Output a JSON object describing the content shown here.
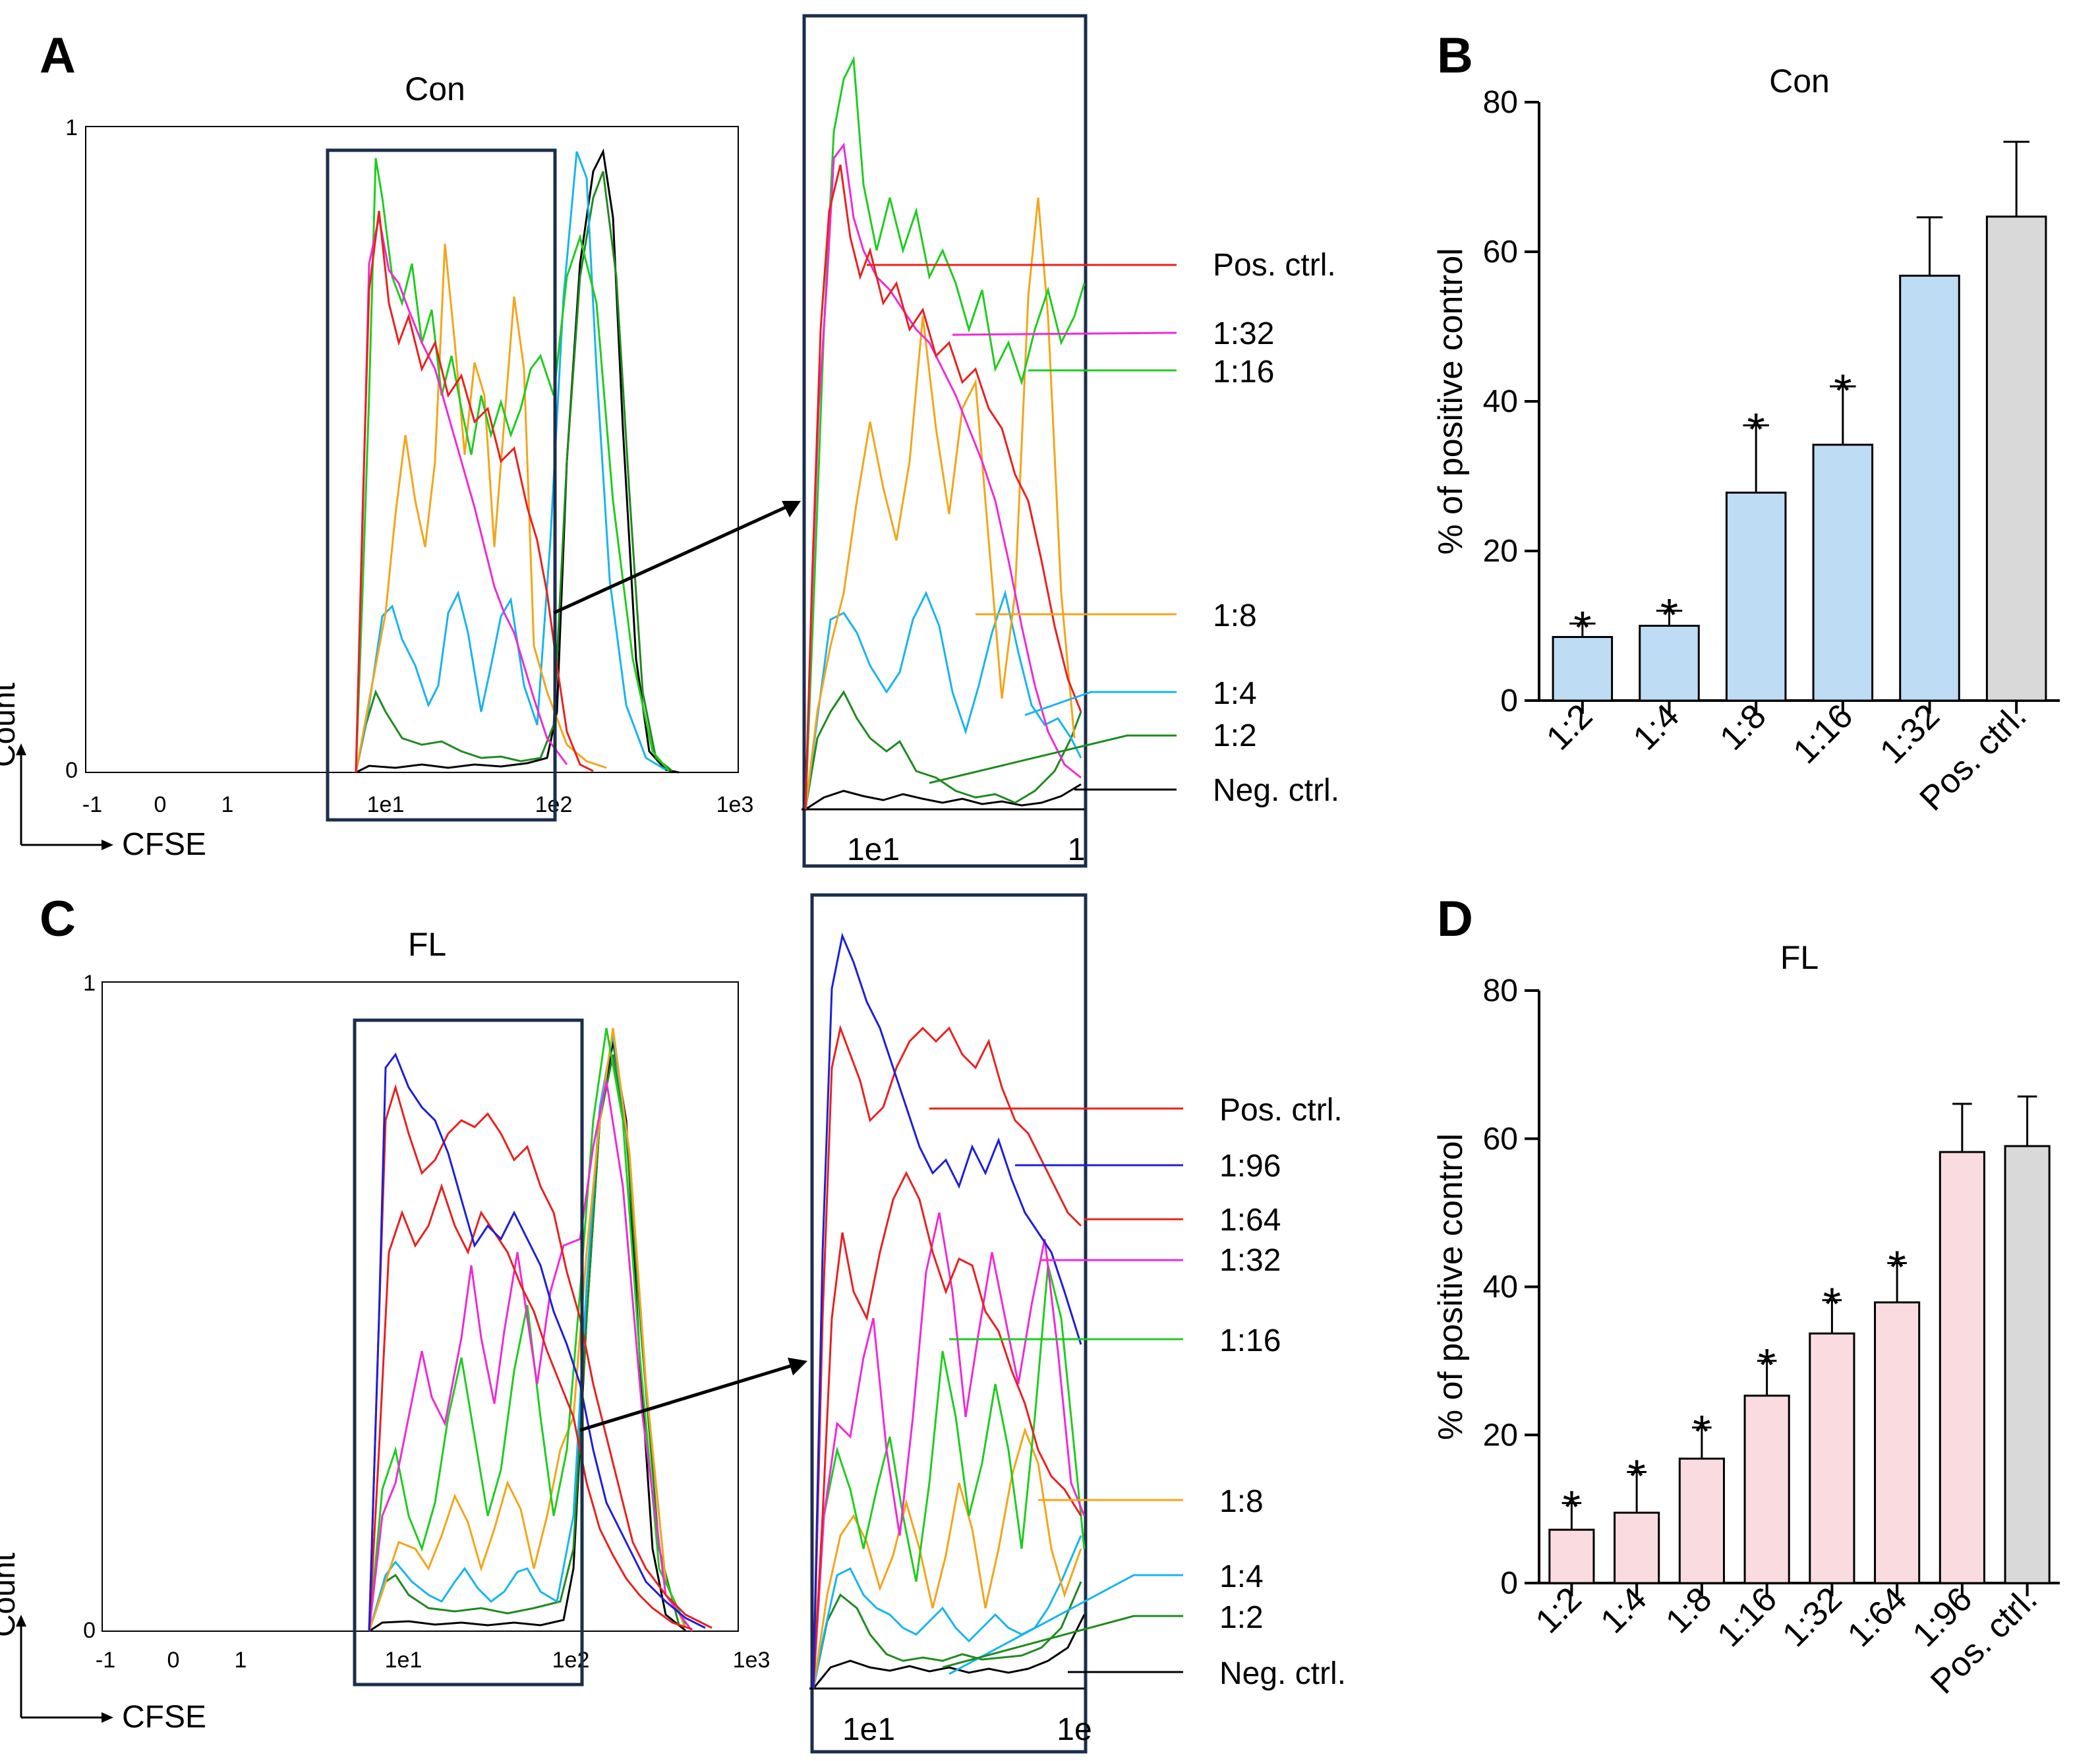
{
  "panels": {
    "A": {
      "letter": "A",
      "title": "Con",
      "x_ticks": [
        "-1",
        "0",
        "1",
        "1e1",
        "1e2",
        "1e3"
      ],
      "y_ticks": [
        "1",
        "0"
      ],
      "axis_x": "CFSE",
      "axis_y": "Count",
      "zoom_ticks": [
        "1e1",
        "1"
      ],
      "legend": [
        {
          "label": "Pos. ctrl.",
          "color": "#e8211f"
        },
        {
          "label": "1:32",
          "color": "#ee2bd6"
        },
        {
          "label": "1:16",
          "color": "#1fcc1f"
        },
        {
          "label": "1:8",
          "color": "#f3a51a"
        },
        {
          "label": "1:4",
          "color": "#18b4ee"
        },
        {
          "label": "1:2",
          "color": "#1f8a1f"
        },
        {
          "label": "Neg. ctrl.",
          "color": "#000000"
        }
      ]
    },
    "C": {
      "letter": "C",
      "title": "FL",
      "x_ticks": [
        "-1",
        "0",
        "1",
        "1e1",
        "1e2",
        "1e3"
      ],
      "y_ticks": [
        "1",
        "0"
      ],
      "axis_x": "CFSE",
      "axis_y": "Count",
      "zoom_ticks": [
        "1e1",
        "1e"
      ],
      "legend": [
        {
          "label": "Pos. ctrl.",
          "color": "#e8211f"
        },
        {
          "label": "1:96",
          "color": "#1d1fd8"
        },
        {
          "label": "1:64",
          "color": "#e8211f"
        },
        {
          "label": "1:32",
          "color": "#ee2bd6"
        },
        {
          "label": "1:16",
          "color": "#1fcc1f"
        },
        {
          "label": "1:8",
          "color": "#f3a51a"
        },
        {
          "label": "1:4",
          "color": "#18b4ee"
        },
        {
          "label": "1:2",
          "color": "#1f8a1f"
        },
        {
          "label": "Neg. ctrl.",
          "color": "#000000"
        }
      ]
    }
  },
  "chart_data": [
    {
      "panel": "B",
      "type": "bar",
      "title": "Con",
      "ylabel": "% of positive control",
      "xlabel": "",
      "ylim": [
        0,
        80
      ],
      "yticks": [
        "0",
        "20",
        "40",
        "60",
        "80"
      ],
      "categories": [
        "1:2",
        "1:4",
        "1:8",
        "1:16",
        "1:32",
        "Pos. ctrl."
      ],
      "values": [
        8.5,
        10,
        27.8,
        34.2,
        56.8,
        64.7
      ],
      "errors": [
        1.8,
        2.0,
        9,
        7.8,
        7.8,
        10
      ],
      "significant": [
        "*",
        "*",
        "*",
        "*",
        "",
        ""
      ],
      "colors": [
        "#bfdcf5",
        "#bfdcf5",
        "#bfdcf5",
        "#bfdcf5",
        "#bfdcf5",
        "#d9d9d9"
      ]
    },
    {
      "panel": "D",
      "type": "bar",
      "title": "FL",
      "ylabel": "% of positive control",
      "xlabel": "",
      "ylim": [
        0,
        80
      ],
      "yticks": [
        "0",
        "20",
        "40",
        "60",
        "80"
      ],
      "categories": [
        "1:2",
        "1:4",
        "1:8",
        "1:16",
        "1:32",
        "1:64",
        "1:96",
        "Pos. ctrl."
      ],
      "values": [
        7.2,
        9.5,
        16.8,
        25.3,
        33.7,
        37.9,
        58.2,
        59
      ],
      "errors": [
        3.6,
        5.5,
        4.2,
        4.7,
        4.5,
        5.3,
        6.5,
        6.7
      ],
      "significant": [
        "*",
        "*",
        "*",
        "*",
        "*",
        "*",
        "",
        ""
      ],
      "colors": [
        "#fadbdf",
        "#fadbdf",
        "#fadbdf",
        "#fadbdf",
        "#fadbdf",
        "#fadbdf",
        "#fadbdf",
        "#d9d9d9"
      ]
    }
  ]
}
